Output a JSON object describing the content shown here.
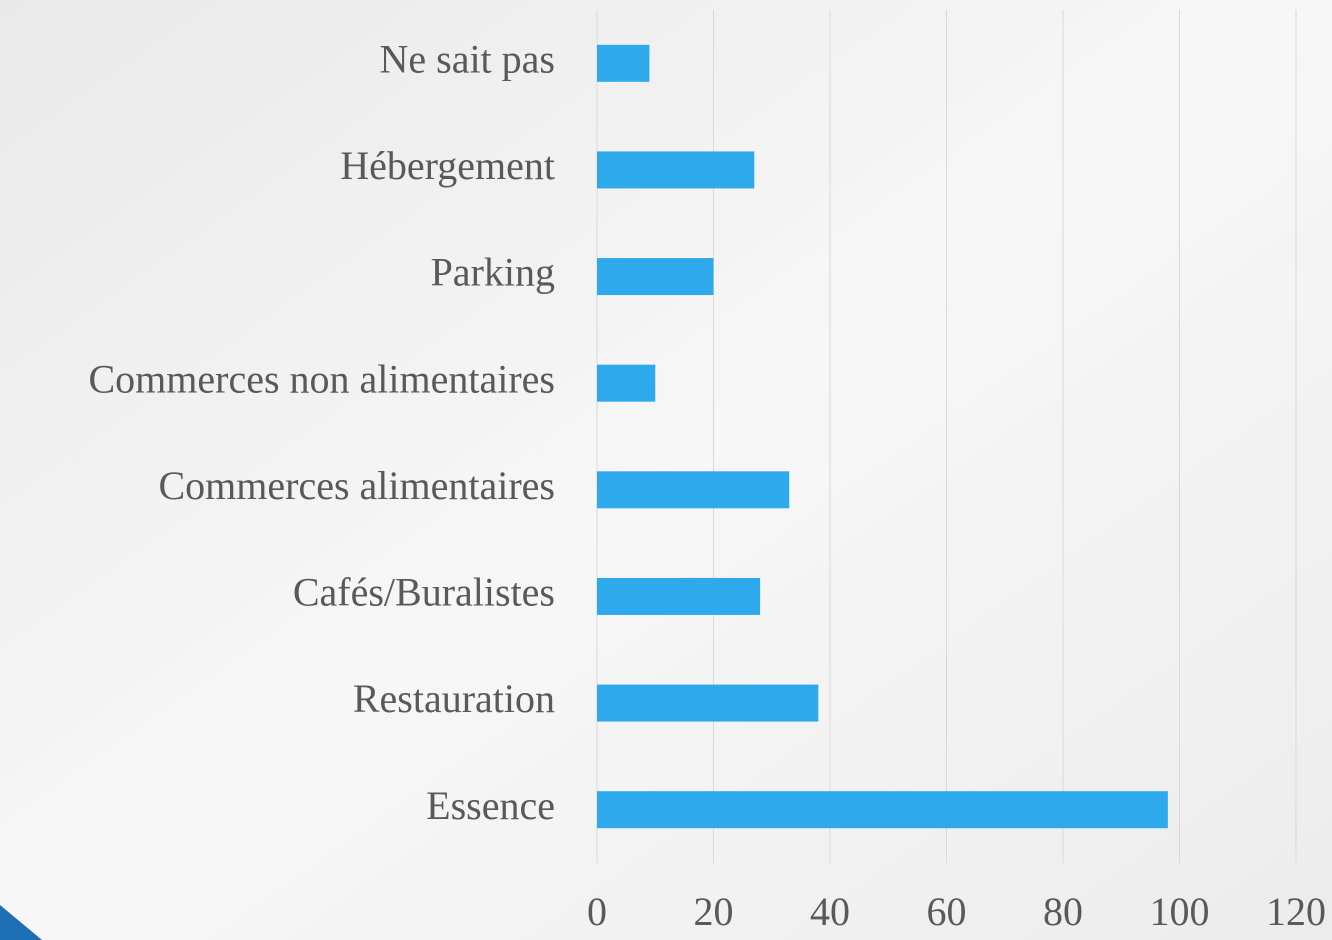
{
  "chart_data": {
    "type": "barh",
    "categories": [
      "Essence",
      "Restauration",
      "Cafés/Buralistes",
      "Commerces alimentaires",
      "Commerces non alimentaires",
      "Parking",
      "Hébergement",
      "Ne sait pas"
    ],
    "values": [
      98,
      38,
      28,
      33,
      10,
      20,
      27,
      9
    ],
    "color": "#2eaaec",
    "xlim": [
      0,
      120
    ],
    "xticks": [
      0,
      20,
      40,
      60,
      80,
      100,
      120
    ],
    "grid": true
  }
}
